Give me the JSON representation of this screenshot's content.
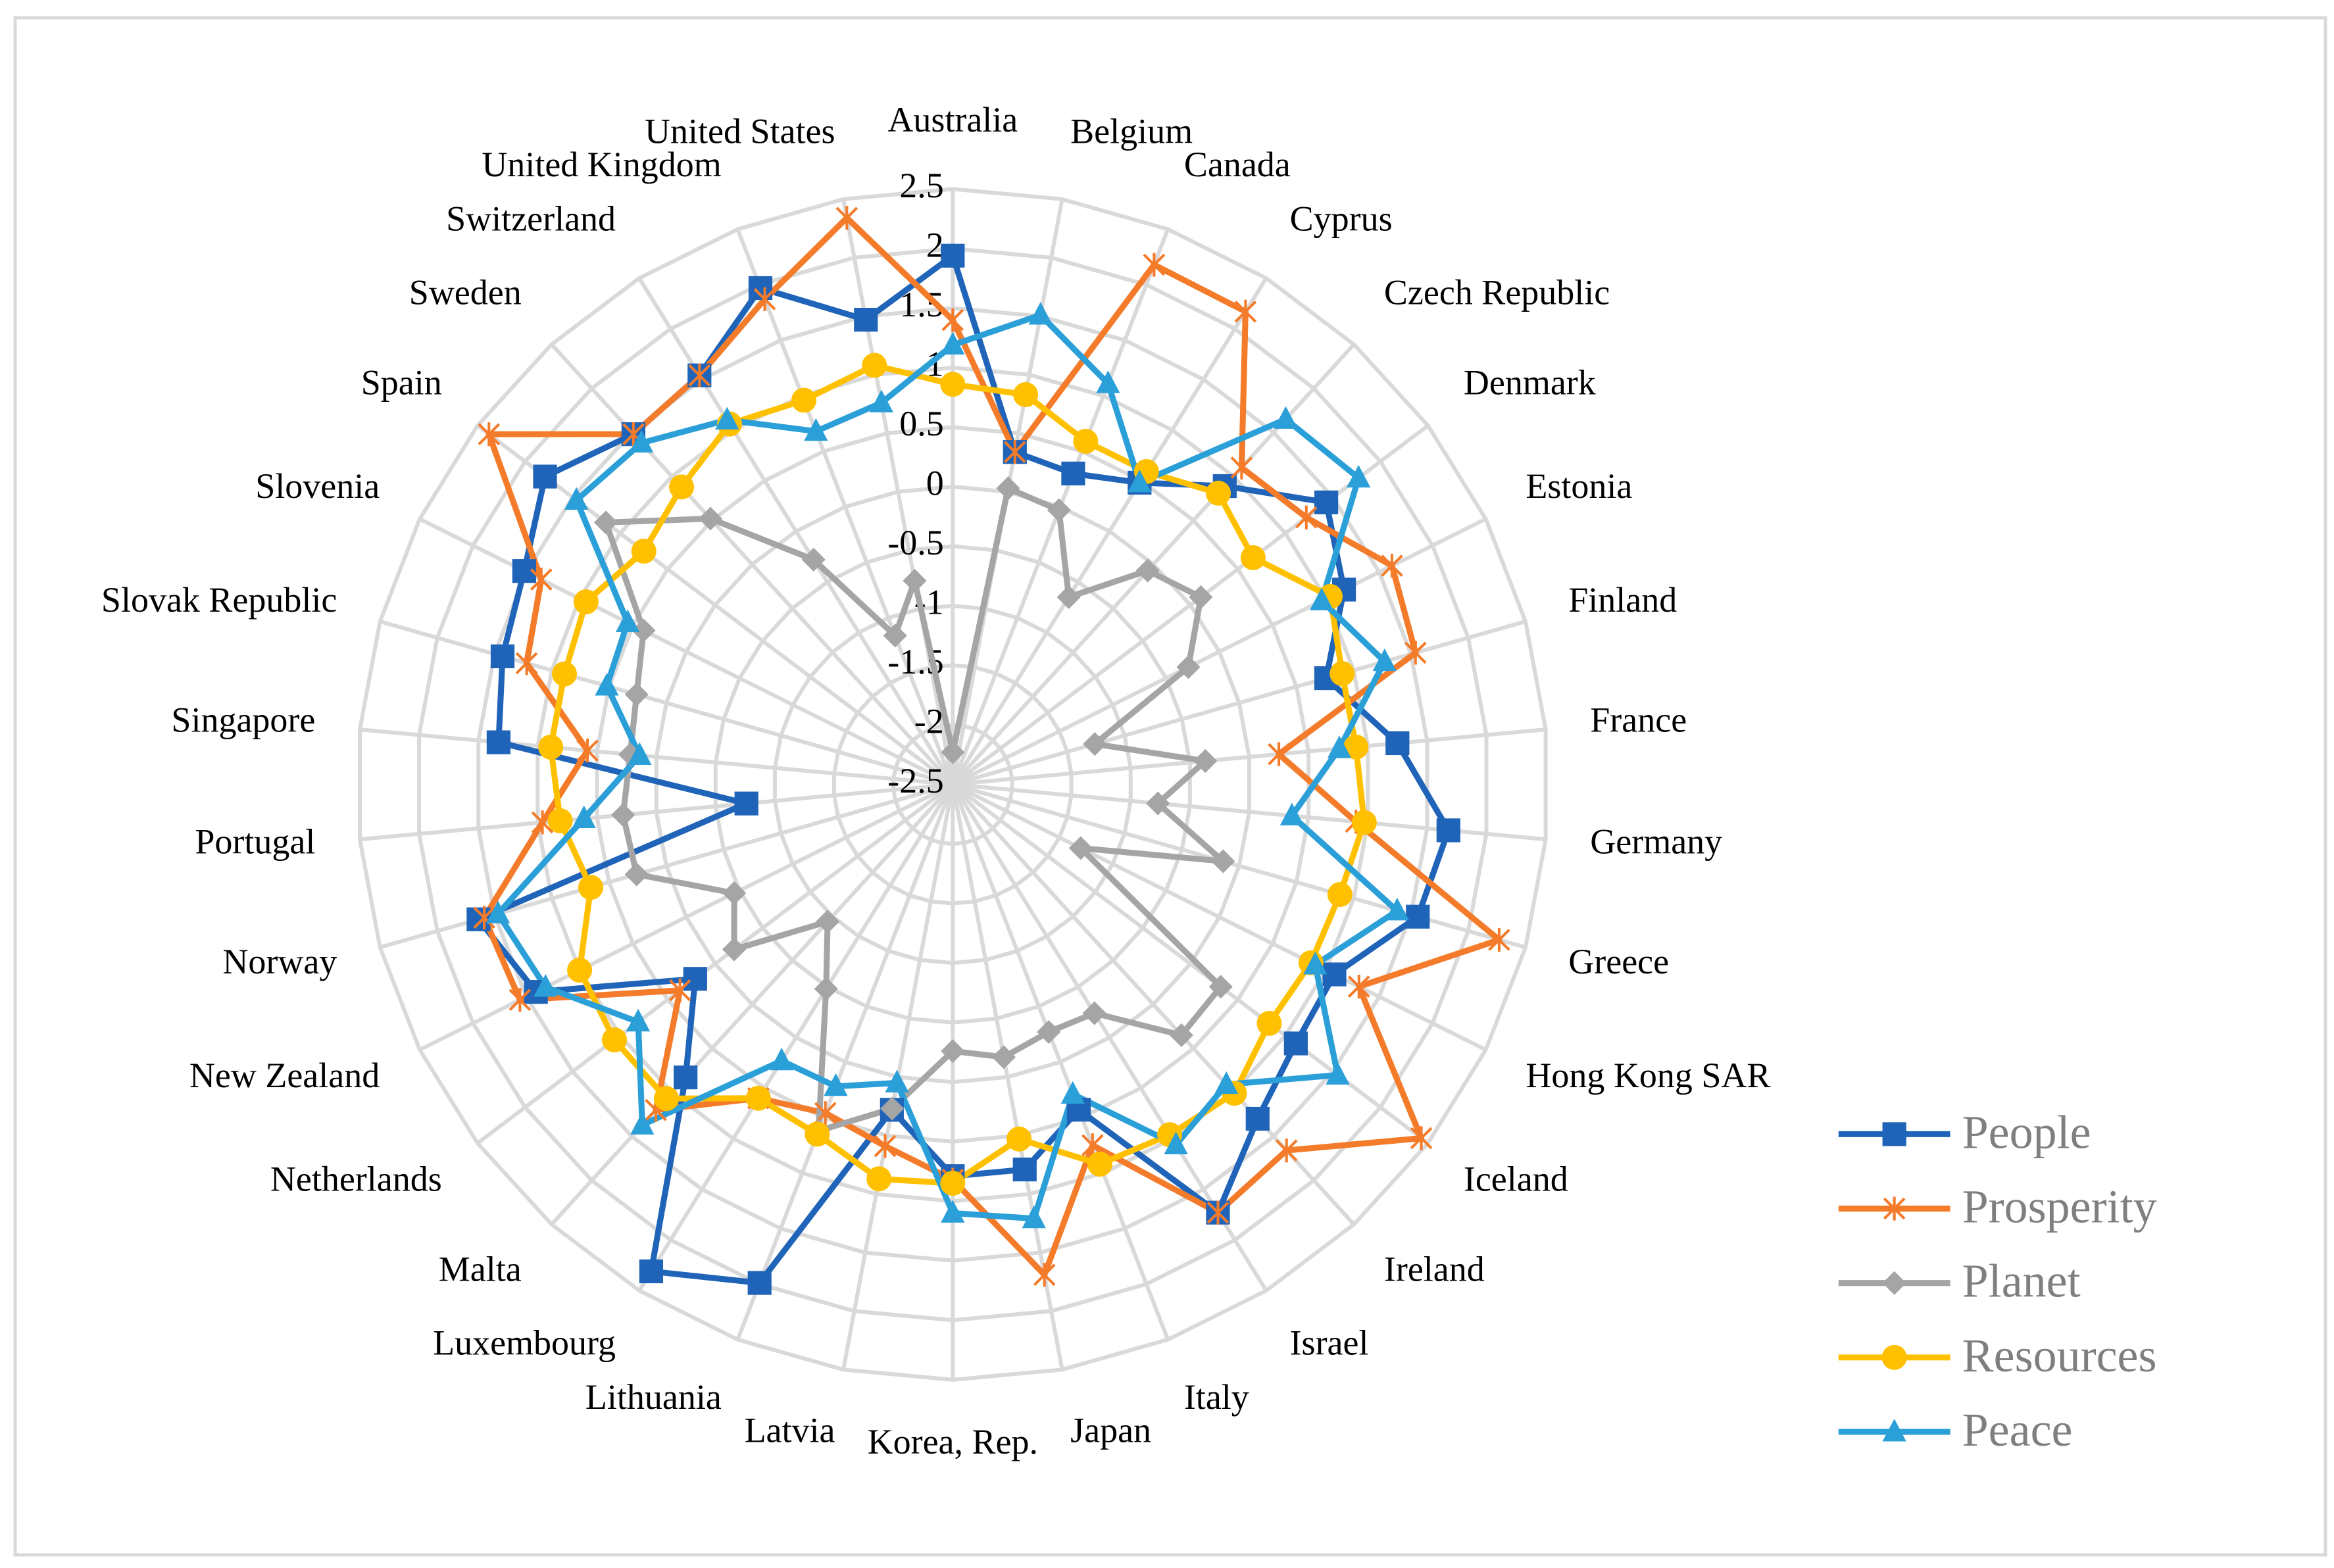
{
  "chart_data": {
    "type": "radar",
    "categories": [
      "Australia",
      "Belgium",
      "Canada",
      "Cyprus",
      "Czech Republic",
      "Denmark",
      "Estonia",
      "Finland",
      "France",
      "Germany",
      "Greece",
      "Hong Kong SAR",
      "Iceland",
      "Ireland",
      "Israel",
      "Italy",
      "Japan",
      "Korea, Rep.",
      "Latvia",
      "Lithuania",
      "Luxembourg",
      "Malta",
      "Netherlands",
      "New Zealand",
      "Norway",
      "Portugal",
      "Singapore",
      "Slovak Republic",
      "Slovenia",
      "Spain",
      "Sweden",
      "Switzerland",
      "United Kingdom",
      "United States"
    ],
    "ylim": [
      -2.5,
      2.5
    ],
    "yticks": [
      -2.5,
      -2,
      -1.5,
      -1,
      -0.5,
      0,
      0.5,
      1,
      1.5,
      2,
      2.5
    ],
    "grid": true,
    "legend": "right",
    "series": [
      {
        "name": "People",
        "color": "#1f64b8",
        "marker": "square",
        "values": [
          1.94,
          0.34,
          0.3,
          0.48,
          0.89,
          1.43,
          1.17,
          0.76,
          1.25,
          1.68,
          1.56,
          1.08,
          1.11,
          1.3,
          1.73,
          0.43,
          0.79,
          0.79,
          0.28,
          1.99,
          2.31,
          0.83,
          0.21,
          1.41,
          1.64,
          -0.76,
          1.33,
          1.43,
          1.52,
          1.79,
          1.48,
          1.54,
          1.97,
          1.47
        ]
      },
      {
        "name": "Prosperity",
        "color": "#f47b2a",
        "marker": "star",
        "values": [
          1.4,
          0.34,
          2.18,
          2.17,
          1.1,
          1.22,
          1.62,
          1.54,
          0.25,
          0.9,
          2.27,
          1.31,
          2.43,
          1.66,
          1.73,
          0.75,
          1.69,
          0.82,
          0.59,
          0.46,
          0.6,
          1.2,
          0.37,
          1.56,
          1.59,
          0.96,
          0.58,
          1.22,
          1.36,
          2.38,
          1.48,
          1.54,
          1.87,
          2.34
        ]
      },
      {
        "name": "Planet",
        "color": "#a5a5a5",
        "marker": "diamond",
        "values": [
          -2.23,
          0.03,
          -0.03,
          -0.65,
          -0.07,
          0.11,
          -0.29,
          -1.26,
          -0.37,
          -0.77,
          -0.14,
          -1.3,
          0.32,
          0.35,
          -0.24,
          -0.27,
          -0.17,
          -0.26,
          0.27,
          0.62,
          -0.48,
          -0.94,
          -0.2,
          -0.45,
          0.26,
          0.28,
          0.22,
          0.26,
          0.4,
          1.15,
          0.52,
          -0.28,
          -1.16,
          -0.76
        ]
      },
      {
        "name": "Resources",
        "color": "#ffc000",
        "marker": "circle",
        "values": [
          0.86,
          0.83,
          0.59,
          0.59,
          0.81,
          0.66,
          1.04,
          0.9,
          0.9,
          0.97,
          0.88,
          0.86,
          0.83,
          1.01,
          0.96,
          0.92,
          0.53,
          0.85,
          0.87,
          0.65,
          0.6,
          1.07,
          1.06,
          1.0,
          0.66,
          0.81,
          0.89,
          0.89,
          0.94,
          0.75,
          0.88,
          1.06,
          0.96,
          1.08
        ]
      },
      {
        "name": "Peace",
        "color": "#2a9fd8",
        "marker": "triangle",
        "values": [
          1.19,
          1.51,
          1.11,
          0.48,
          1.65,
          1.77,
          0.96,
          1.27,
          0.76,
          0.36,
          1.38,
          0.9,
          1.55,
          0.91,
          1.06,
          0.29,
          1.21,
          1.1,
          0.05,
          0.22,
          0.23,
          1.37,
          0.81,
          1.32,
          1.47,
          0.61,
          0.14,
          0.52,
          0.55,
          1.46,
          1.38,
          1.1,
          0.68,
          0.76
        ]
      }
    ]
  }
}
